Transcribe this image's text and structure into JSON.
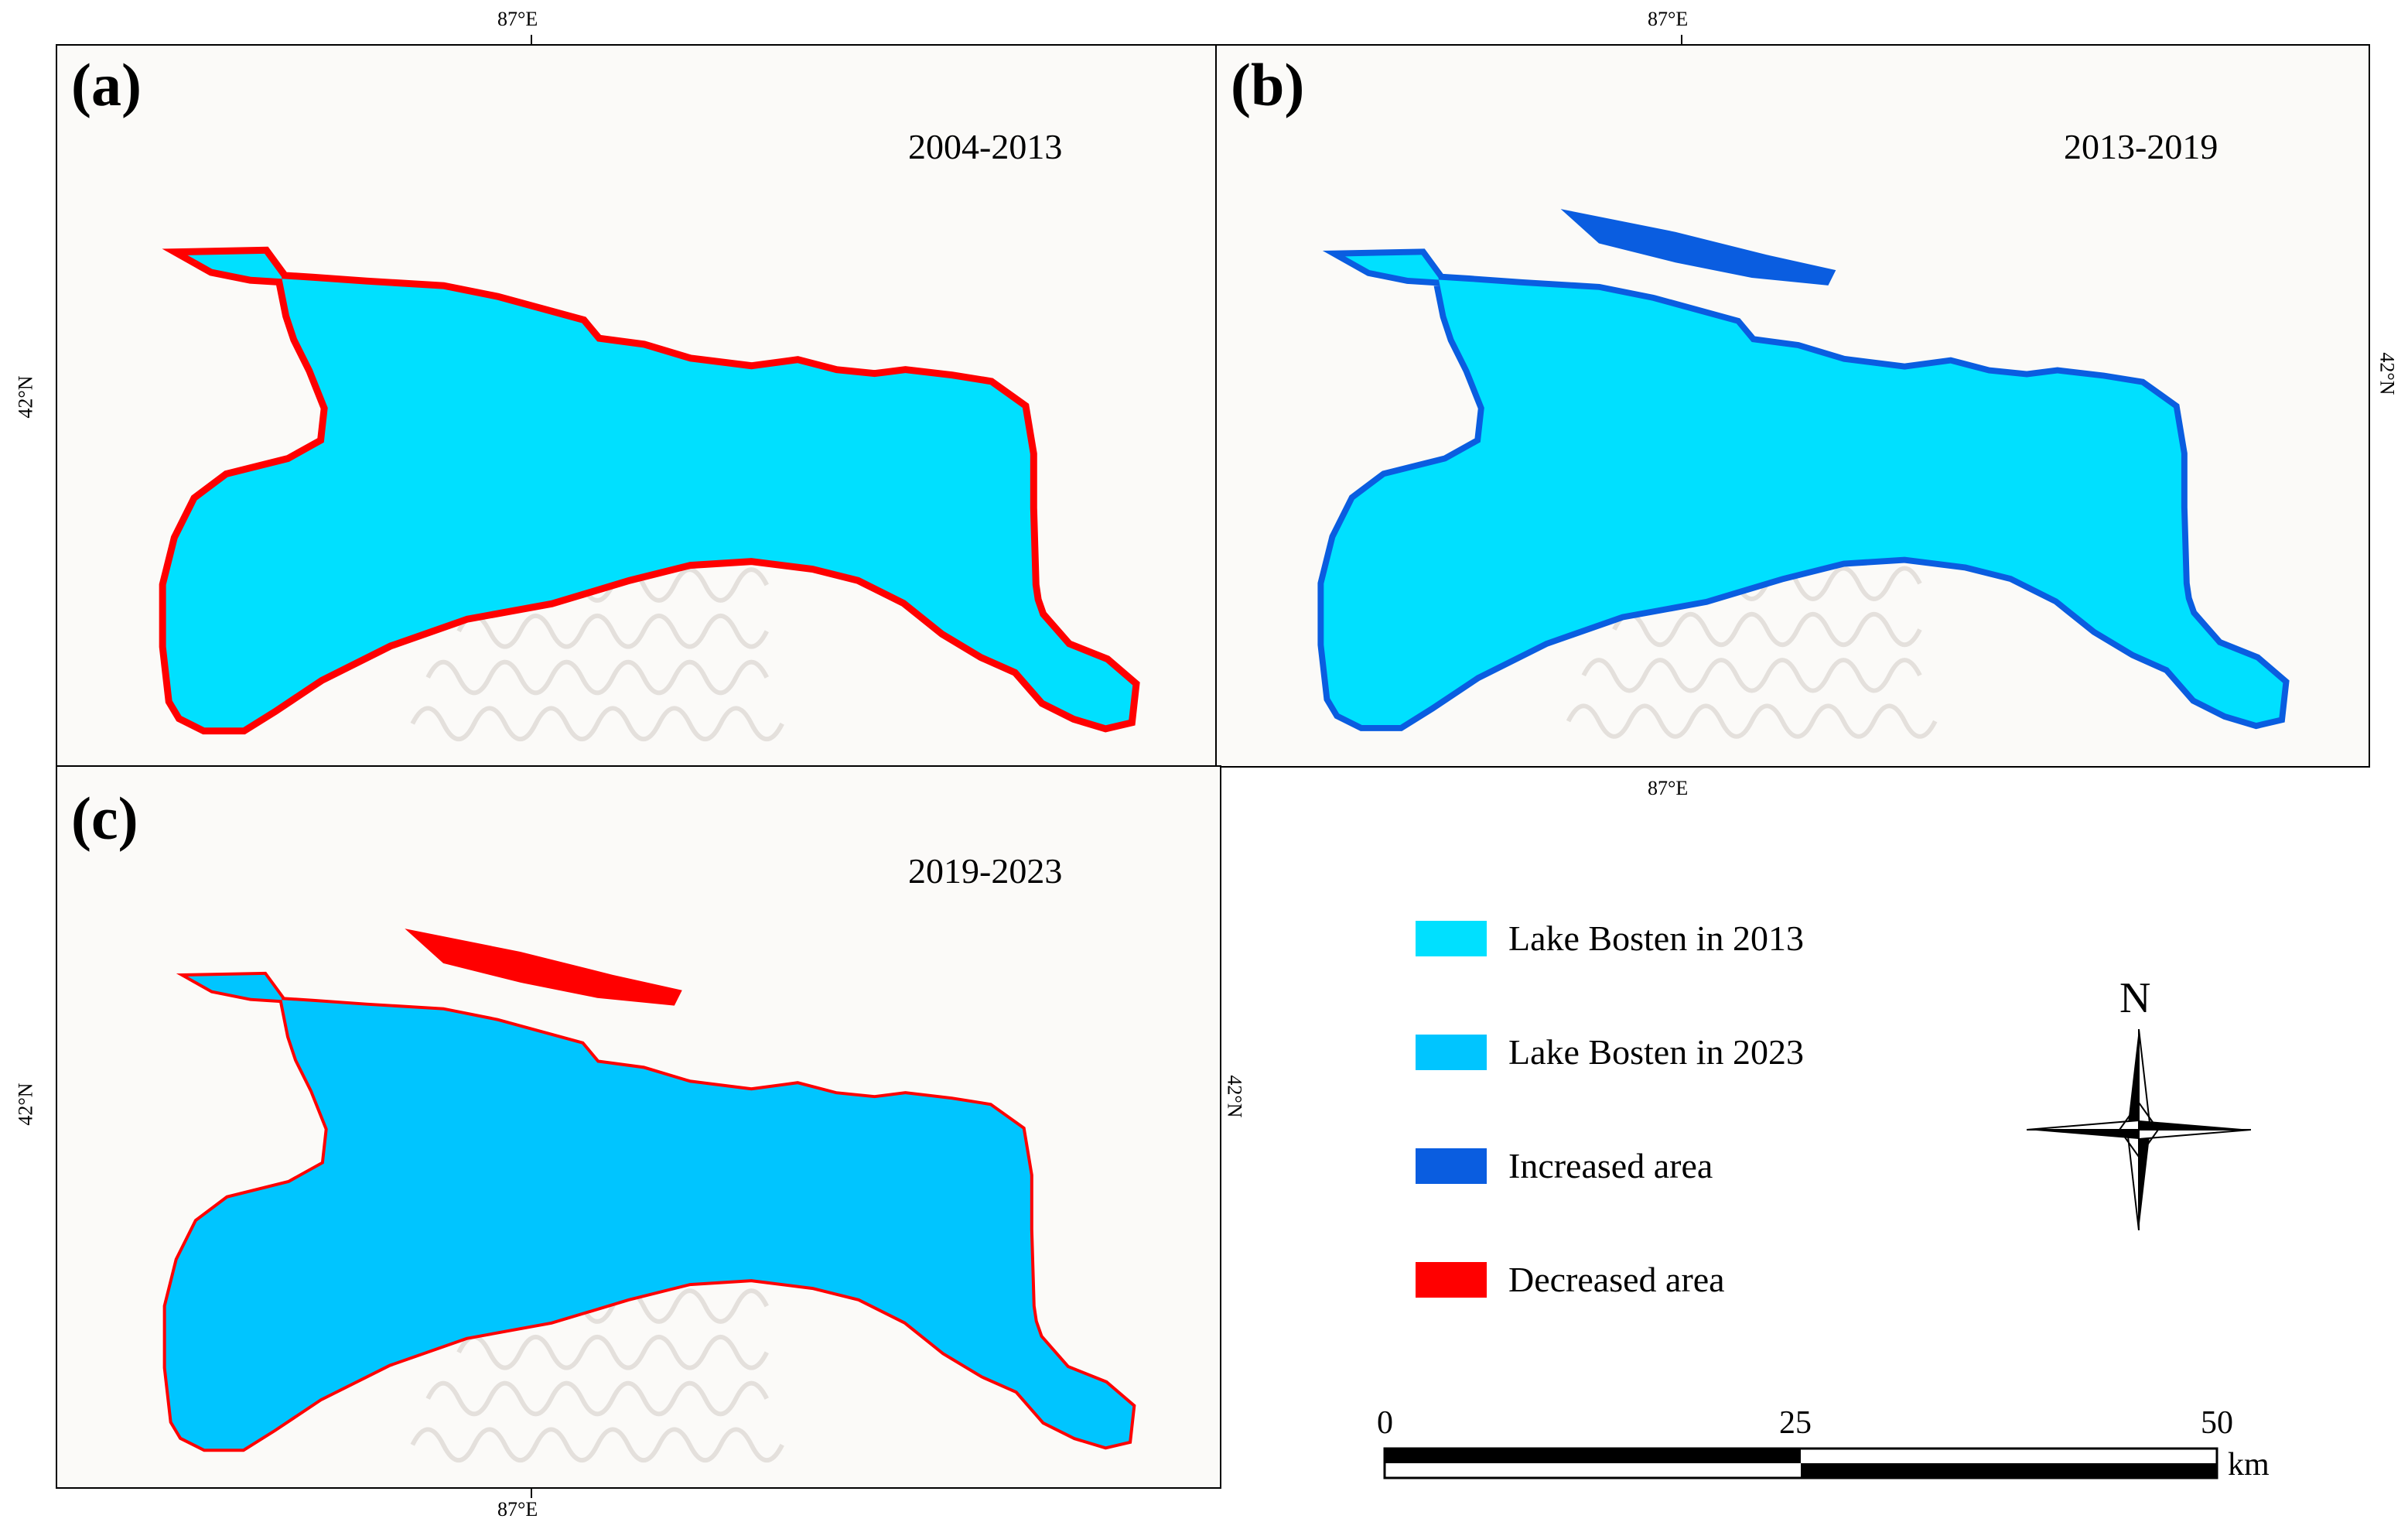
{
  "panels": [
    {
      "letter": "(a)",
      "period": "2004-2013"
    },
    {
      "letter": "(b)",
      "period": "2013-2019"
    },
    {
      "letter": "(c)",
      "period": "2019-2023"
    }
  ],
  "coords": {
    "lon": "87°E",
    "lat": "42°N"
  },
  "legend": [
    {
      "label": "Lake Bosten in 2013",
      "color": "#00e0ff"
    },
    {
      "label": "Lake Bosten in 2023",
      "color": "#00c5ff"
    },
    {
      "label": "Increased area",
      "color": "#0a5de0"
    },
    {
      "label": "Decreased area",
      "color": "#ff0000"
    }
  ],
  "north_arrow": {
    "label": "N"
  },
  "scale_bar": {
    "ticks": [
      "0",
      "25",
      "50"
    ],
    "unit": "km"
  }
}
